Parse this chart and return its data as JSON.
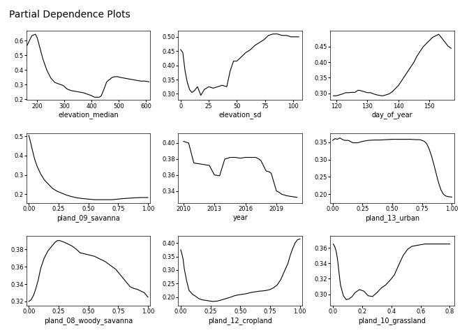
{
  "title": "Partial Dependence Plots",
  "subplots": [
    {
      "xlabel": "elevation_median",
      "xlim": [
        160,
        615
      ],
      "ylim": [
        0.195,
        0.67
      ],
      "xticks": [
        200,
        300,
        400,
        500,
        600
      ],
      "yticks": [
        0.2,
        0.3,
        0.4,
        0.5,
        0.6
      ],
      "x": [
        163,
        180,
        193,
        200,
        210,
        220,
        235,
        250,
        265,
        280,
        295,
        310,
        325,
        340,
        355,
        370,
        385,
        400,
        410,
        420,
        428,
        435,
        445,
        455,
        465,
        475,
        485,
        495,
        505,
        520,
        535,
        550,
        565,
        580,
        595,
        610
      ],
      "y": [
        0.57,
        0.635,
        0.645,
        0.62,
        0.55,
        0.48,
        0.4,
        0.345,
        0.315,
        0.305,
        0.295,
        0.27,
        0.26,
        0.255,
        0.25,
        0.245,
        0.235,
        0.225,
        0.215,
        0.215,
        0.215,
        0.225,
        0.27,
        0.32,
        0.335,
        0.35,
        0.355,
        0.355,
        0.35,
        0.345,
        0.34,
        0.335,
        0.33,
        0.325,
        0.325,
        0.32
      ]
    },
    {
      "xlabel": "elevation_sd",
      "xlim": [
        -2,
        108
      ],
      "ylim": [
        0.278,
        0.522
      ],
      "xticks": [
        0,
        25,
        50,
        75,
        100
      ],
      "yticks": [
        0.3,
        0.35,
        0.4,
        0.45,
        0.5
      ],
      "x": [
        0,
        2,
        4,
        6,
        8,
        10,
        12,
        15,
        18,
        21,
        25,
        29,
        33,
        37,
        41,
        44,
        47,
        50,
        54,
        58,
        62,
        66,
        70,
        74,
        78,
        82,
        86,
        90,
        94,
        98,
        102,
        105
      ],
      "y": [
        0.455,
        0.445,
        0.38,
        0.34,
        0.315,
        0.305,
        0.31,
        0.325,
        0.295,
        0.315,
        0.325,
        0.32,
        0.325,
        0.33,
        0.325,
        0.38,
        0.415,
        0.415,
        0.43,
        0.445,
        0.455,
        0.47,
        0.48,
        0.49,
        0.505,
        0.51,
        0.51,
        0.505,
        0.505,
        0.5,
        0.5,
        0.5
      ]
    },
    {
      "xlabel": "day_of_year",
      "xlim": [
        118,
        158
      ],
      "ylim": [
        0.278,
        0.502
      ],
      "xticks": [
        120,
        130,
        140,
        150
      ],
      "yticks": [
        0.3,
        0.35,
        0.4,
        0.45
      ],
      "x": [
        119,
        120,
        121,
        122,
        123,
        124,
        125,
        126,
        127,
        128,
        129,
        130,
        131,
        132,
        133,
        134,
        135,
        136,
        137,
        138,
        139,
        140,
        141,
        142,
        143,
        144,
        145,
        146,
        147,
        148,
        149,
        150,
        151,
        152,
        153,
        154,
        155,
        156,
        157
      ],
      "y": [
        0.292,
        0.292,
        0.295,
        0.298,
        0.302,
        0.302,
        0.303,
        0.303,
        0.31,
        0.308,
        0.305,
        0.302,
        0.302,
        0.298,
        0.295,
        0.293,
        0.292,
        0.295,
        0.298,
        0.305,
        0.315,
        0.325,
        0.34,
        0.355,
        0.37,
        0.385,
        0.4,
        0.42,
        0.435,
        0.45,
        0.46,
        0.47,
        0.48,
        0.485,
        0.49,
        0.478,
        0.465,
        0.452,
        0.445
      ]
    },
    {
      "xlabel": "pland_09_savanna",
      "xlim": [
        -0.02,
        1.02
      ],
      "ylim": [
        0.155,
        0.515
      ],
      "xticks": [
        0.0,
        0.25,
        0.5,
        0.75,
        1.0
      ],
      "yticks": [
        0.2,
        0.3,
        0.4,
        0.5
      ],
      "x": [
        0.0,
        0.015,
        0.03,
        0.05,
        0.07,
        0.1,
        0.13,
        0.16,
        0.2,
        0.24,
        0.28,
        0.32,
        0.36,
        0.4,
        0.45,
        0.5,
        0.55,
        0.6,
        0.65,
        0.7,
        0.75,
        0.8,
        0.85,
        0.9,
        0.95,
        1.0
      ],
      "y": [
        0.505,
        0.47,
        0.43,
        0.38,
        0.345,
        0.305,
        0.275,
        0.255,
        0.23,
        0.215,
        0.205,
        0.195,
        0.188,
        0.182,
        0.178,
        0.175,
        0.172,
        0.172,
        0.172,
        0.172,
        0.175,
        0.178,
        0.18,
        0.182,
        0.183,
        0.183
      ]
    },
    {
      "xlabel": "year",
      "xlim": [
        2009.5,
        2021.5
      ],
      "ylim": [
        0.325,
        0.412
      ],
      "xticks": [
        2010,
        2013,
        2016,
        2019
      ],
      "yticks": [
        0.34,
        0.36,
        0.38,
        0.4
      ],
      "x": [
        2010,
        2010.5,
        2011,
        2011.5,
        2012,
        2012.5,
        2013,
        2013.5,
        2014,
        2014.3,
        2014.5,
        2015,
        2015.5,
        2016,
        2016.3,
        2016.5,
        2017,
        2017.3,
        2017.5,
        2018,
        2018.3,
        2018.5,
        2019,
        2019.3,
        2019.5,
        2020,
        2020.5,
        2021
      ],
      "y": [
        0.402,
        0.4,
        0.375,
        0.374,
        0.373,
        0.372,
        0.36,
        0.359,
        0.38,
        0.381,
        0.382,
        0.382,
        0.381,
        0.382,
        0.382,
        0.382,
        0.382,
        0.38,
        0.378,
        0.365,
        0.364,
        0.362,
        0.34,
        0.338,
        0.336,
        0.334,
        0.333,
        0.332
      ]
    },
    {
      "xlabel": "pland_13_urban",
      "xlim": [
        -0.02,
        1.02
      ],
      "ylim": [
        0.175,
        0.375
      ],
      "xticks": [
        0.0,
        0.25,
        0.5,
        0.75,
        1.0
      ],
      "yticks": [
        0.2,
        0.25,
        0.3,
        0.35
      ],
      "x": [
        0.0,
        0.02,
        0.04,
        0.06,
        0.08,
        0.1,
        0.13,
        0.17,
        0.21,
        0.25,
        0.3,
        0.35,
        0.4,
        0.45,
        0.5,
        0.55,
        0.6,
        0.65,
        0.7,
        0.73,
        0.75,
        0.77,
        0.79,
        0.81,
        0.83,
        0.85,
        0.87,
        0.89,
        0.91,
        0.93,
        0.95,
        0.97,
        1.0
      ],
      "y": [
        0.355,
        0.36,
        0.358,
        0.362,
        0.358,
        0.355,
        0.355,
        0.348,
        0.348,
        0.352,
        0.355,
        0.356,
        0.356,
        0.357,
        0.358,
        0.358,
        0.358,
        0.358,
        0.357,
        0.357,
        0.355,
        0.352,
        0.345,
        0.33,
        0.31,
        0.285,
        0.258,
        0.232,
        0.212,
        0.2,
        0.195,
        0.193,
        0.192
      ]
    },
    {
      "xlabel": "pland_08_woody_savanna",
      "xlim": [
        -0.02,
        1.02
      ],
      "ylim": [
        0.315,
        0.395
      ],
      "xticks": [
        0.0,
        0.25,
        0.5,
        0.75,
        1.0
      ],
      "yticks": [
        0.32,
        0.34,
        0.36,
        0.38
      ],
      "x": [
        0.0,
        0.02,
        0.04,
        0.06,
        0.08,
        0.1,
        0.13,
        0.16,
        0.19,
        0.22,
        0.24,
        0.26,
        0.28,
        0.3,
        0.33,
        0.36,
        0.4,
        0.43,
        0.46,
        0.49,
        0.52,
        0.55,
        0.58,
        0.61,
        0.64,
        0.67,
        0.7,
        0.73,
        0.76,
        0.79,
        0.82,
        0.85,
        0.88,
        0.91,
        0.94,
        0.97,
        1.0
      ],
      "y": [
        0.32,
        0.322,
        0.327,
        0.335,
        0.345,
        0.358,
        0.37,
        0.378,
        0.383,
        0.388,
        0.39,
        0.39,
        0.389,
        0.388,
        0.386,
        0.384,
        0.38,
        0.376,
        0.375,
        0.374,
        0.373,
        0.372,
        0.37,
        0.368,
        0.366,
        0.363,
        0.36,
        0.357,
        0.352,
        0.347,
        0.342,
        0.337,
        0.335,
        0.334,
        0.332,
        0.33,
        0.325
      ]
    },
    {
      "xlabel": "pland_12_cropland",
      "xlim": [
        -0.02,
        1.02
      ],
      "ylim": [
        0.168,
        0.425
      ],
      "xticks": [
        0.0,
        0.25,
        0.5,
        0.75,
        1.0
      ],
      "yticks": [
        0.2,
        0.25,
        0.3,
        0.35,
        0.4
      ],
      "x": [
        0.0,
        0.01,
        0.02,
        0.03,
        0.05,
        0.07,
        0.1,
        0.12,
        0.15,
        0.18,
        0.21,
        0.24,
        0.27,
        0.3,
        0.33,
        0.36,
        0.39,
        0.42,
        0.45,
        0.48,
        0.51,
        0.54,
        0.57,
        0.6,
        0.63,
        0.66,
        0.69,
        0.72,
        0.75,
        0.78,
        0.81,
        0.84,
        0.87,
        0.9,
        0.92,
        0.94,
        0.96,
        0.98,
        1.0
      ],
      "y": [
        0.375,
        0.36,
        0.34,
        0.305,
        0.26,
        0.225,
        0.21,
        0.205,
        0.195,
        0.19,
        0.188,
        0.186,
        0.184,
        0.185,
        0.188,
        0.192,
        0.196,
        0.2,
        0.205,
        0.208,
        0.21,
        0.212,
        0.215,
        0.218,
        0.22,
        0.222,
        0.223,
        0.225,
        0.228,
        0.235,
        0.245,
        0.265,
        0.295,
        0.325,
        0.355,
        0.38,
        0.4,
        0.412,
        0.415
      ]
    },
    {
      "xlabel": "pland_10_grassland",
      "xlim": [
        -0.02,
        0.83
      ],
      "ylim": [
        0.285,
        0.375
      ],
      "xticks": [
        0.0,
        0.2,
        0.4,
        0.6,
        0.8
      ],
      "yticks": [
        0.3,
        0.32,
        0.34,
        0.36
      ],
      "x": [
        0.0,
        0.01,
        0.02,
        0.03,
        0.04,
        0.05,
        0.07,
        0.09,
        0.11,
        0.13,
        0.15,
        0.18,
        0.21,
        0.24,
        0.27,
        0.3,
        0.33,
        0.36,
        0.39,
        0.42,
        0.45,
        0.48,
        0.51,
        0.54,
        0.57,
        0.6,
        0.63,
        0.66,
        0.69,
        0.72,
        0.75,
        0.78,
        0.8
      ],
      "y": [
        0.365,
        0.362,
        0.356,
        0.345,
        0.328,
        0.312,
        0.298,
        0.293,
        0.294,
        0.297,
        0.302,
        0.306,
        0.304,
        0.298,
        0.297,
        0.302,
        0.308,
        0.312,
        0.318,
        0.325,
        0.338,
        0.35,
        0.358,
        0.362,
        0.363,
        0.364,
        0.365,
        0.365,
        0.365,
        0.365,
        0.365,
        0.365,
        0.365
      ]
    }
  ]
}
